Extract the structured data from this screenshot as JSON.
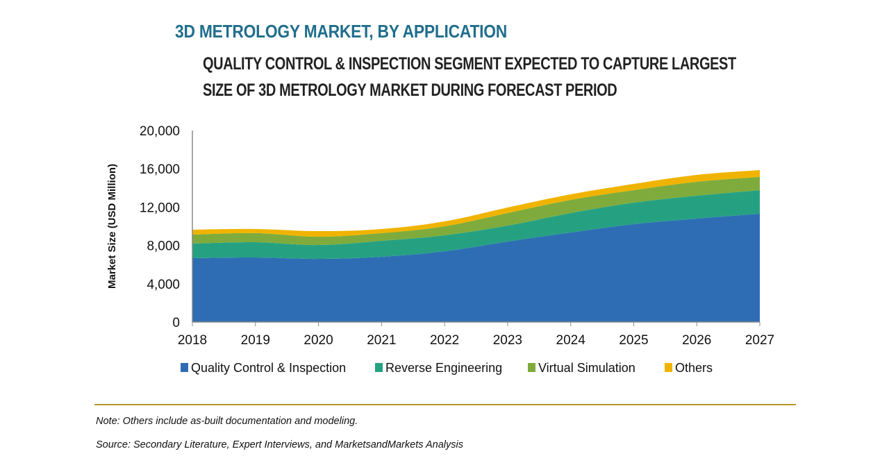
{
  "header": {
    "title": "3D METROLOGY MARKET, BY APPLICATION",
    "subtitle_line1": "QUALITY CONTROL & INSPECTION SEGMENT EXPECTED TO CAPTURE LARGEST",
    "subtitle_line2": "SIZE OF 3D METROLOGY MARKET DURING FORECAST PERIOD"
  },
  "footer": {
    "note": "Note: Others include as-built documentation and modeling.",
    "source": "Source: Secondary Literature, Expert Interviews, and MarketsandMarkets Analysis"
  },
  "chart_data": {
    "type": "area",
    "stacked": true,
    "title": "3D METROLOGY MARKET, BY APPLICATION",
    "xlabel": "",
    "ylabel": "Market Size (USD Million)",
    "categories": [
      "2018",
      "2019",
      "2020",
      "2021",
      "2022",
      "2023",
      "2024",
      "2025",
      "2026",
      "2027"
    ],
    "ylim": [
      0,
      20000
    ],
    "yticks": [
      0,
      4000,
      8000,
      12000,
      16000,
      20000
    ],
    "ytick_labels": [
      "0",
      "4,000",
      "8,000",
      "12,000",
      "16,000",
      "20,000"
    ],
    "grid": false,
    "legend_position": "bottom",
    "series": [
      {
        "name": "Quality Control & Inspection",
        "color": "#2e6db4",
        "values": [
          6670,
          6740,
          6590,
          6810,
          7390,
          8410,
          9350,
          10220,
          10800,
          11300
        ]
      },
      {
        "name": "Reverse Engineering",
        "color": "#25a182",
        "values": [
          1520,
          1590,
          1450,
          1670,
          1670,
          1660,
          2030,
          2240,
          2390,
          2470
        ]
      },
      {
        "name": "Virtual Simulation",
        "color": "#7fab3c",
        "values": [
          940,
          950,
          870,
          800,
          940,
          1310,
          1370,
          1310,
          1450,
          1380
        ]
      },
      {
        "name": "Others",
        "color": "#f0b400",
        "values": [
          510,
          430,
          580,
          430,
          510,
          580,
          580,
          650,
          720,
          720
        ]
      }
    ]
  }
}
